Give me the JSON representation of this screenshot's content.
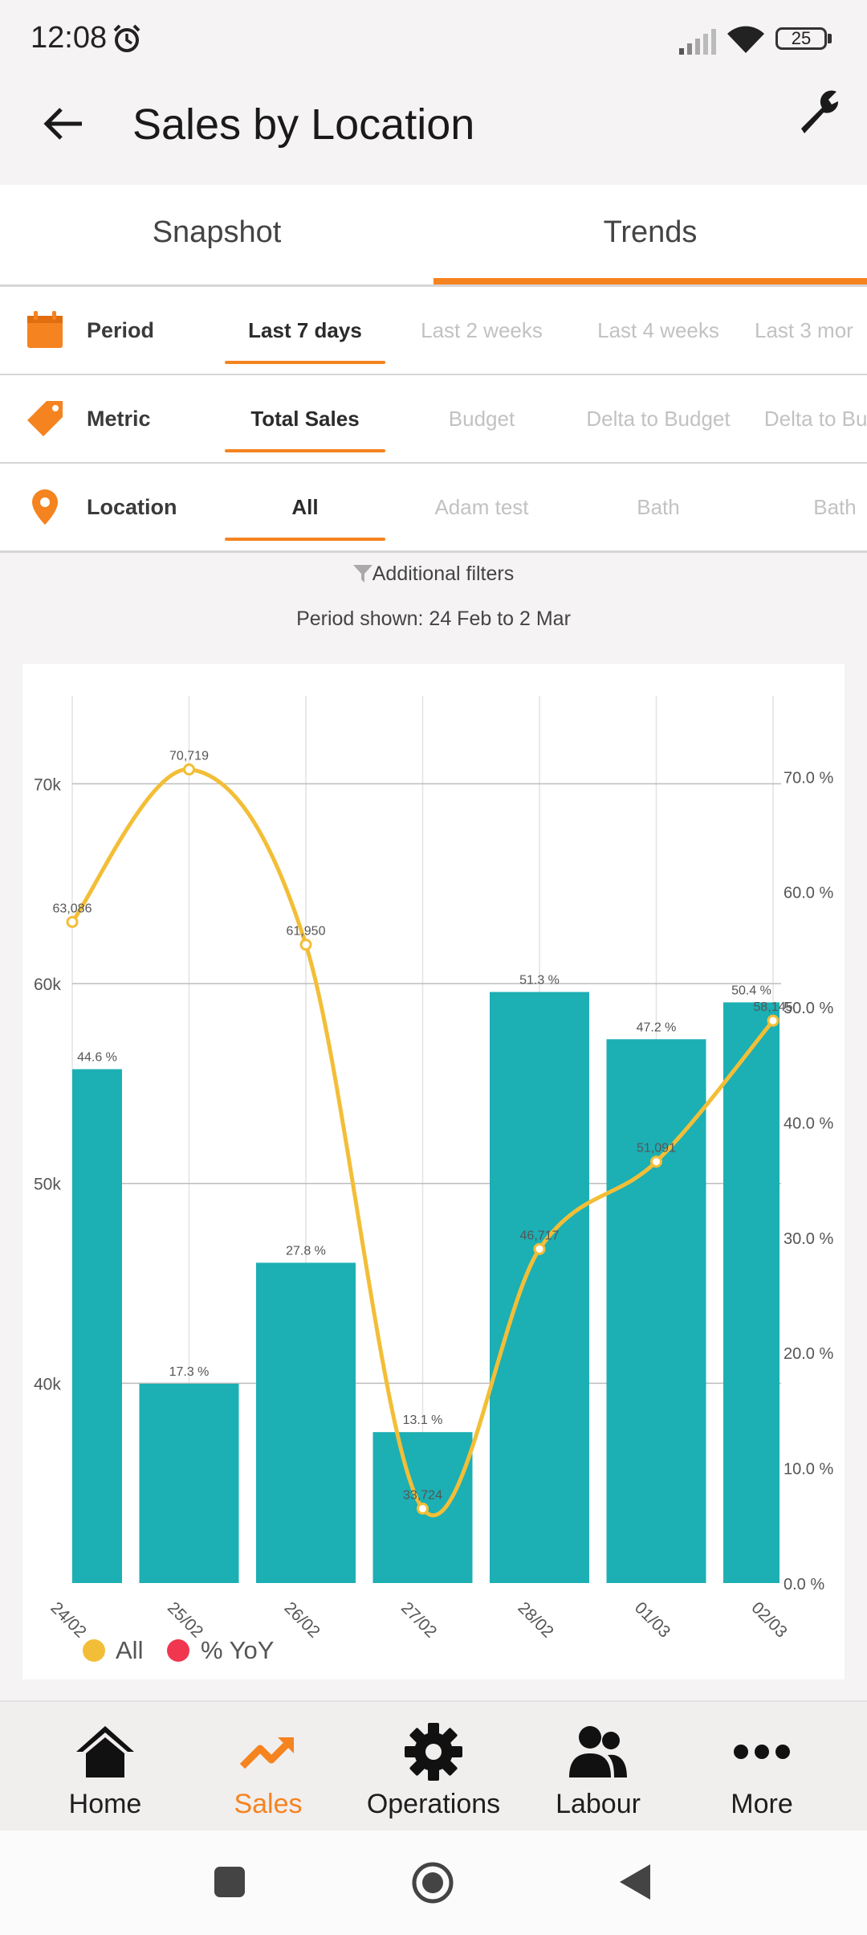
{
  "status_bar": {
    "time": "12:08",
    "battery": "25"
  },
  "app_bar": {
    "title": "Sales by Location"
  },
  "tabs": [
    {
      "label": "Snapshot",
      "active": false
    },
    {
      "label": "Trends",
      "active": true
    }
  ],
  "filters": {
    "period": {
      "label": "Period",
      "options": [
        "Last 7 days",
        "Last 2 weeks",
        "Last 4 weeks",
        "Last 3 mor"
      ],
      "selected": "Last 7 days"
    },
    "metric": {
      "label": "Metric",
      "options": [
        "Total Sales",
        "Budget",
        "Delta to Budget",
        "Delta to Bu (%)"
      ],
      "selected": "Total Sales"
    },
    "location": {
      "label": "Location",
      "options": [
        "All",
        "Adam test",
        "Bath",
        "Bath"
      ],
      "selected": "All"
    }
  },
  "additional_filters_label": "Additional filters",
  "period_shown": "Period shown: 24 Feb to 2 Mar",
  "colors": {
    "accent": "#f5831f",
    "bar": "#1cafb4",
    "line": "#f3be37",
    "legend_yoy": "#f0374f"
  },
  "chart_data": {
    "type": "bar+line",
    "categories": [
      "24/02",
      "25/02",
      "26/02",
      "27/02",
      "28/02",
      "01/03",
      "02/03"
    ],
    "series": [
      {
        "name": "All",
        "type": "line",
        "axis": "left",
        "values": [
          63086,
          70719,
          61950,
          33724,
          46717,
          51091,
          58145
        ],
        "labels": [
          "63,086",
          "70,719",
          "61,950",
          "33,724",
          "46,717",
          "51,091",
          "58,145"
        ]
      },
      {
        "name": "% YoY",
        "type": "bar",
        "axis": "right",
        "values": [
          44.6,
          17.3,
          27.8,
          13.1,
          51.3,
          47.2,
          50.4
        ],
        "labels": [
          "44.6 %",
          "17.3 %",
          "27.8 %",
          "13.1 %",
          "51.3 %",
          "47.2 %",
          "50.4 %"
        ]
      }
    ],
    "y_left": {
      "ticks": [
        "40k",
        "50k",
        "60k",
        "70k"
      ],
      "tick_values": [
        40000,
        50000,
        60000,
        70000
      ],
      "ylim": [
        30000,
        74400
      ]
    },
    "y_right": {
      "ticks": [
        "0.0 %",
        "10.0 %",
        "20.0 %",
        "30.0 %",
        "40.0 %",
        "50.0 %",
        "60.0 %",
        "70.0 %"
      ],
      "tick_values": [
        0,
        10,
        20,
        30,
        40,
        50,
        60,
        70
      ],
      "ylim": [
        0,
        77
      ]
    },
    "legend": {
      "position": "bottom-left"
    },
    "grid": true
  },
  "bottom_nav": [
    {
      "label": "Home",
      "icon": "home-icon",
      "active": false
    },
    {
      "label": "Sales",
      "icon": "trending-up-icon",
      "active": true
    },
    {
      "label": "Operations",
      "icon": "gear-icon",
      "active": false
    },
    {
      "label": "Labour",
      "icon": "people-icon",
      "active": false
    },
    {
      "label": "More",
      "icon": "more-dots-icon",
      "active": false
    }
  ]
}
